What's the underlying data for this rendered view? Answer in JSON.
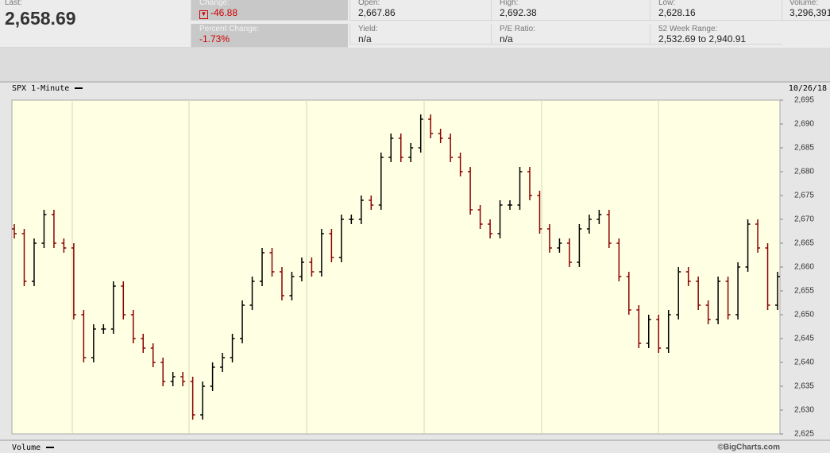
{
  "header": {
    "last": {
      "label": "Last:",
      "value": "2,658.69"
    },
    "change": {
      "label": "Change:",
      "value": "-46.88"
    },
    "percent_change": {
      "label": "Percent Change:",
      "value": "-1.73%"
    },
    "open": {
      "label": "Open:",
      "value": "2,667.86"
    },
    "yield": {
      "label": "Yield:",
      "value": "n/a"
    },
    "high": {
      "label": "High:",
      "value": "2,692.38"
    },
    "pe_ratio": {
      "label": "P/E Ratio:",
      "value": "n/a"
    },
    "low": {
      "label": "Low:",
      "value": "2,628.16"
    },
    "week_range": {
      "label": "52 Week Range:",
      "value": "2,532.69 to 2,940.91"
    },
    "volume": {
      "label": "Volume:",
      "value": "3,296,391"
    }
  },
  "chart_data": {
    "type": "ohlc",
    "title": "SPX 1-Minute",
    "date": "10/26/18",
    "lower_panel": "Volume",
    "credit": "©BigCharts.com",
    "up_color": "#000000",
    "down_color": "#8b0000",
    "ylim": [
      2625,
      2695
    ],
    "yticks": [
      {
        "value": 2625,
        "label": "2,625"
      },
      {
        "value": 2630,
        "label": "2,630"
      },
      {
        "value": 2635,
        "label": "2,635"
      },
      {
        "value": 2640,
        "label": "2,640"
      },
      {
        "value": 2645,
        "label": "2,645"
      },
      {
        "value": 2650,
        "label": "2,650"
      },
      {
        "value": 2655,
        "label": "2,655"
      },
      {
        "value": 2660,
        "label": "2,660"
      },
      {
        "value": 2665,
        "label": "2,665"
      },
      {
        "value": 2670,
        "label": "2,670"
      },
      {
        "value": 2675,
        "label": "2,675"
      },
      {
        "value": 2680,
        "label": "2,680"
      },
      {
        "value": 2685,
        "label": "2,685"
      },
      {
        "value": 2690,
        "label": "2,690"
      },
      {
        "value": 2695,
        "label": "2,695"
      }
    ],
    "open": [
      2668,
      2667,
      2657,
      2665,
      2671,
      2665,
      2664,
      2650,
      2641,
      2647,
      2647,
      2656,
      2650,
      2645,
      2643,
      2640,
      2636,
      2637,
      2636,
      2629,
      2635,
      2639,
      2641,
      2645,
      2652,
      2657,
      2663,
      2659,
      2654,
      2658,
      2661,
      2659,
      2667,
      2662,
      2670,
      2670,
      2674,
      2673,
      2683,
      2687,
      2683,
      2685,
      2691,
      2688,
      2687,
      2683,
      2680,
      2672,
      2669,
      2667,
      2673,
      2673,
      2680,
      2675,
      2668,
      2664,
      2665,
      2661,
      2668,
      2670,
      2671,
      2665,
      2658,
      2651,
      2644,
      2649,
      2643,
      2650,
      2659,
      2657,
      2652,
      2649,
      2657,
      2650,
      2660,
      2669,
      2664,
      2652
    ],
    "high": [
      2669,
      2668,
      2666,
      2672,
      2672,
      2666,
      2665,
      2651,
      2648,
      2648,
      2657,
      2657,
      2651,
      2646,
      2644,
      2641,
      2638,
      2638,
      2637,
      2636,
      2640,
      2642,
      2646,
      2653,
      2658,
      2664,
      2664,
      2660,
      2659,
      2662,
      2662,
      2668,
      2668,
      2671,
      2671,
      2675,
      2675,
      2684,
      2688,
      2688,
      2686,
      2692,
      2692,
      2689,
      2688,
      2684,
      2681,
      2673,
      2670,
      2674,
      2674,
      2681,
      2681,
      2676,
      2669,
      2666,
      2666,
      2669,
      2671,
      2672,
      2672,
      2666,
      2659,
      2652,
      2650,
      2650,
      2651,
      2660,
      2660,
      2658,
      2653,
      2658,
      2658,
      2661,
      2670,
      2670,
      2665,
      2659
    ],
    "low": [
      2666,
      2656,
      2656,
      2664,
      2664,
      2663,
      2649,
      2640,
      2640,
      2646,
      2646,
      2649,
      2644,
      2642,
      2639,
      2635,
      2635,
      2635,
      2628,
      2628,
      2634,
      2638,
      2640,
      2644,
      2651,
      2656,
      2658,
      2653,
      2653,
      2657,
      2658,
      2658,
      2661,
      2661,
      2669,
      2669,
      2672,
      2672,
      2682,
      2682,
      2682,
      2684,
      2687,
      2686,
      2682,
      2679,
      2671,
      2668,
      2666,
      2666,
      2672,
      2672,
      2674,
      2667,
      2663,
      2663,
      2660,
      2660,
      2667,
      2669,
      2664,
      2657,
      2650,
      2643,
      2643,
      2642,
      2642,
      2649,
      2656,
      2651,
      2648,
      2648,
      2649,
      2649,
      2659,
      2663,
      2651,
      2651
    ],
    "close": [
      2667,
      2657,
      2665,
      2671,
      2665,
      2664,
      2650,
      2641,
      2647,
      2647,
      2656,
      2650,
      2645,
      2643,
      2640,
      2636,
      2637,
      2636,
      2629,
      2635,
      2639,
      2641,
      2645,
      2652,
      2657,
      2663,
      2659,
      2654,
      2658,
      2661,
      2659,
      2667,
      2662,
      2670,
      2670,
      2674,
      2673,
      2683,
      2687,
      2683,
      2685,
      2691,
      2688,
      2687,
      2683,
      2680,
      2672,
      2669,
      2667,
      2673,
      2673,
      2680,
      2675,
      2668,
      2664,
      2665,
      2661,
      2668,
      2670,
      2671,
      2665,
      2658,
      2651,
      2644,
      2649,
      2643,
      2650,
      2659,
      2657,
      2652,
      2649,
      2657,
      2650,
      2660,
      2669,
      2664,
      2652,
      2658
    ]
  }
}
